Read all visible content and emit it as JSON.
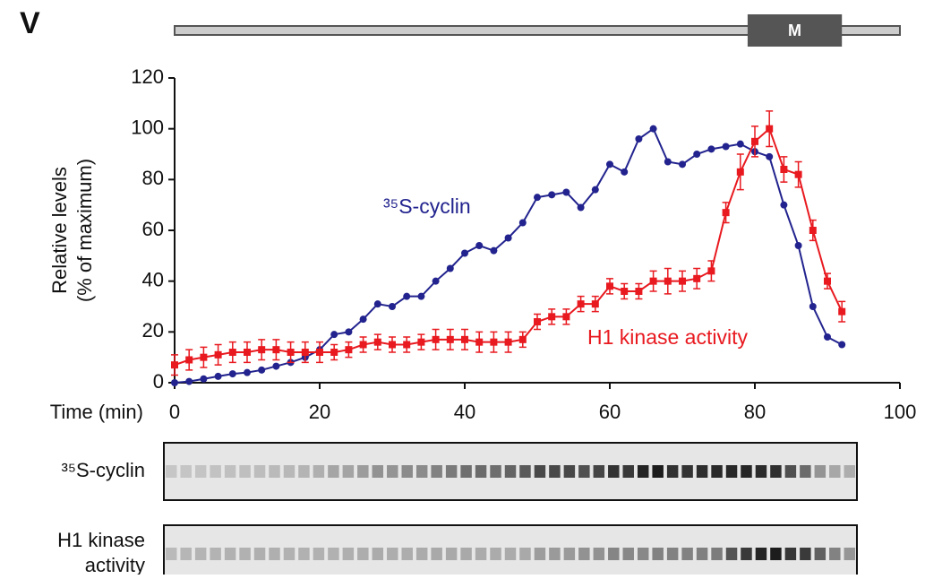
{
  "chart_data": {
    "type": "line",
    "panel_label": "V",
    "ylabel": [
      "Relative levels",
      "(% of maximum)"
    ],
    "xlabel": "Time (min)",
    "xlim": [
      0,
      100
    ],
    "xticks": [
      0,
      20,
      40,
      60,
      80,
      100
    ],
    "ylim": [
      0,
      120
    ],
    "yticks": [
      0,
      20,
      40,
      60,
      80,
      100,
      120
    ],
    "phase": {
      "label": "M",
      "start": 79,
      "end": 92
    },
    "x": [
      0,
      2,
      4,
      6,
      8,
      10,
      12,
      14,
      16,
      18,
      20,
      22,
      24,
      26,
      28,
      30,
      32,
      34,
      36,
      38,
      40,
      42,
      44,
      46,
      48,
      50,
      52,
      54,
      56,
      58,
      60,
      62,
      64,
      66,
      68,
      70,
      72,
      74,
      76,
      78,
      80,
      82,
      84,
      86,
      88,
      90,
      92
    ],
    "series": [
      {
        "name": "³⁵S-cyclin",
        "color": "#22238e",
        "marker": "circle",
        "values": [
          0,
          0.5,
          1.5,
          2.5,
          3.5,
          4,
          5,
          6.5,
          8,
          10,
          13,
          19,
          20,
          25,
          31,
          30,
          34,
          34,
          40,
          45,
          51,
          54,
          52,
          57,
          63,
          73,
          74,
          75,
          69,
          76,
          86,
          83,
          96,
          100,
          87,
          86,
          90,
          92,
          93,
          94,
          91,
          89,
          70,
          54,
          30,
          18,
          15
        ]
      },
      {
        "name": "H1 kinase activity",
        "color": "#e8191f",
        "marker": "square",
        "values": [
          7,
          9,
          10,
          11,
          12,
          12,
          13,
          13,
          12,
          12,
          12,
          12,
          13,
          15,
          16,
          15,
          15,
          16,
          17,
          17,
          17,
          16,
          16,
          16,
          17,
          24,
          26,
          26,
          31,
          31,
          38,
          36,
          36,
          40,
          40,
          40,
          41,
          44,
          67,
          83,
          95,
          100,
          84,
          82,
          60,
          40,
          28
        ],
        "errors": [
          4,
          4,
          4,
          4,
          4,
          4,
          4,
          4,
          4,
          4,
          4,
          3,
          3,
          3,
          3,
          3,
          3,
          3,
          4,
          4,
          4,
          4,
          4,
          4,
          3,
          3,
          3,
          3,
          3,
          3,
          3,
          3,
          3,
          4,
          5,
          4,
          4,
          4,
          4,
          7,
          6,
          7,
          5,
          5,
          4,
          3,
          4
        ]
      }
    ],
    "gels": [
      {
        "label": [
          "³⁵S-cyclin"
        ],
        "series": 0
      },
      {
        "label": [
          "H1 kinase",
          "activity"
        ],
        "series": 1
      }
    ]
  }
}
